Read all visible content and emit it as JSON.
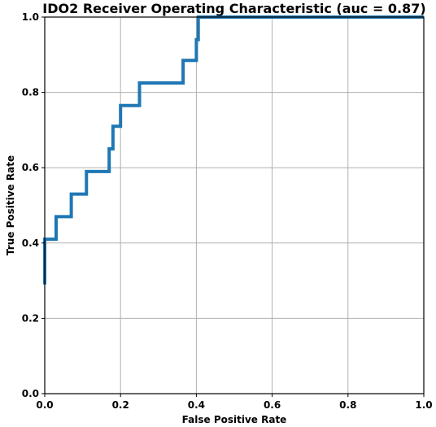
{
  "chart_data": {
    "type": "line",
    "title": "IDO2 Receiver Operating Characteristic (auc = 0.87)",
    "xlabel": "False Positive Rate",
    "ylabel": "True Positive Rate",
    "xlim": [
      0,
      1
    ],
    "ylim": [
      0,
      1
    ],
    "xticks": [
      0.0,
      0.2,
      0.4,
      0.6,
      0.8,
      1.0
    ],
    "yticks": [
      0.0,
      0.2,
      0.4,
      0.6,
      0.8,
      1.0
    ],
    "xtick_labels": [
      "0.0",
      "0.2",
      "0.4",
      "0.6",
      "0.8",
      "1.0"
    ],
    "ytick_labels": [
      "0.0",
      "0.2",
      "0.4",
      "0.6",
      "0.8",
      "1.0"
    ],
    "grid": true,
    "series": [
      {
        "color": "#1f77b4",
        "x": [
          0.0,
          0.0,
          0.0,
          0.03,
          0.03,
          0.07,
          0.07,
          0.11,
          0.11,
          0.17,
          0.17,
          0.18,
          0.18,
          0.2,
          0.2,
          0.25,
          0.25,
          0.365,
          0.365,
          0.4,
          0.4,
          0.405,
          0.405,
          1.0
        ],
        "y": [
          0.29,
          0.41,
          0.41,
          0.41,
          0.47,
          0.47,
          0.53,
          0.53,
          0.59,
          0.59,
          0.65,
          0.65,
          0.71,
          0.71,
          0.765,
          0.765,
          0.825,
          0.825,
          0.885,
          0.885,
          0.94,
          0.94,
          1.0,
          1.0
        ]
      }
    ]
  }
}
